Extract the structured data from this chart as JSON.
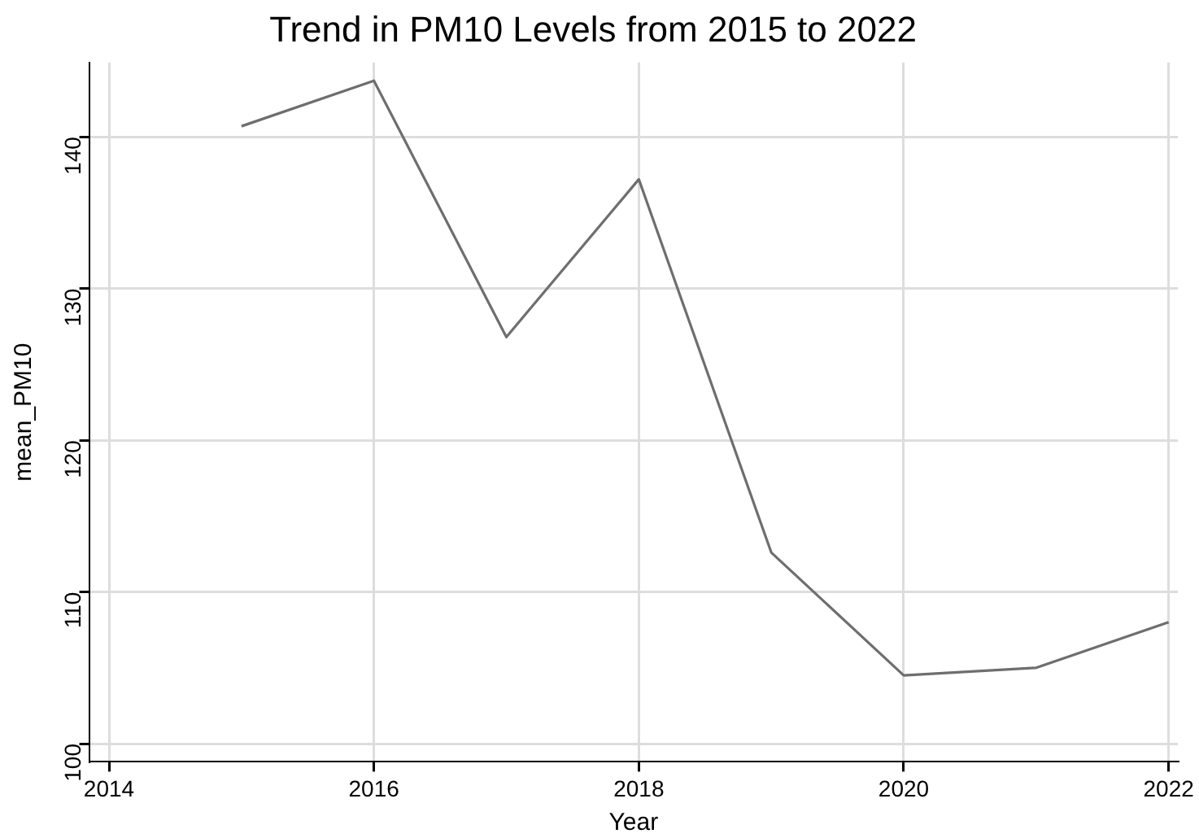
{
  "chart_data": {
    "type": "line",
    "title": "Trend in PM10 Levels from 2015 to 2022",
    "xlabel": "Year",
    "ylabel": "mean_PM10",
    "x": [
      2015,
      2016,
      2017,
      2018,
      2019,
      2020,
      2021,
      2022
    ],
    "series": [
      {
        "color": "#6e6e6e",
        "values": [
          140.7,
          143.7,
          126.8,
          137.2,
          112.6,
          104.5,
          105.0,
          108.0
        ]
      }
    ],
    "xlim": [
      2013.85,
      2022.07
    ],
    "xticks": [
      2014,
      2016,
      2018,
      2020,
      2022
    ],
    "ylim": [
      98.8,
      144.9
    ],
    "yticks": [
      100,
      110,
      120,
      130,
      140
    ],
    "grid": true,
    "legend": false,
    "marker": "none",
    "line_style": "solid"
  }
}
